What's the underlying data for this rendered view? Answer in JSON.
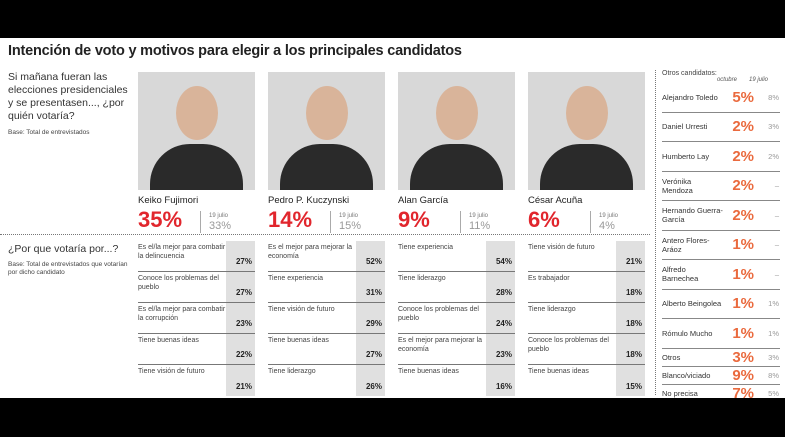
{
  "title": "Intención de voto y motivos para elegir a los principales candidatos",
  "question": "Si mañana fueran las elecciones presidenciales y se presentasen..., ¿por quién votaría?",
  "question_base": "Base: Total de entrevistados",
  "why_question": "¿Por que votaría por...?",
  "why_base": "Base: Total de entrevistados que votarían por dicho candidato",
  "previous_label": "19 julio",
  "chart_data": {
    "type": "table",
    "candidates": [
      {
        "name": "Keiko Fujimori",
        "current": "35%",
        "previous": "33%",
        "reasons": [
          [
            "Es el/la mejor para combatir la delincuencia",
            "27%"
          ],
          [
            "Conoce los problemas del pueblo",
            "27%"
          ],
          [
            "Es el/la mejor para combatir la corrupción",
            "23%"
          ],
          [
            "Tiene buenas ideas",
            "22%"
          ],
          [
            "Tiene visión de futuro",
            "21%"
          ]
        ]
      },
      {
        "name": "Pedro P. Kuczynski",
        "current": "14%",
        "previous": "15%",
        "reasons": [
          [
            "Es el mejor para mejorar la economía",
            "52%"
          ],
          [
            "Tiene experiencia",
            "31%"
          ],
          [
            "Tiene visión de futuro",
            "29%"
          ],
          [
            "Tiene buenas ideas",
            "27%"
          ],
          [
            "Tiene liderazgo",
            "26%"
          ]
        ]
      },
      {
        "name": "Alan García",
        "current": "9%",
        "previous": "11%",
        "reasons": [
          [
            "Tiene experiencia",
            "54%"
          ],
          [
            "Tiene liderazgo",
            "28%"
          ],
          [
            "Conoce los problemas del pueblo",
            "24%"
          ],
          [
            "Es el mejor para mejorar la economía",
            "23%"
          ],
          [
            "Tiene buenas ideas",
            "16%"
          ]
        ]
      },
      {
        "name": "César Acuña",
        "current": "6%",
        "previous": "4%",
        "reasons": [
          [
            "Tiene visión de futuro",
            "21%"
          ],
          [
            "Es trabajador",
            "18%"
          ],
          [
            "Tiene liderazgo",
            "18%"
          ],
          [
            "Conoce los problemas del pueblo",
            "18%"
          ],
          [
            "Tiene buenas ideas",
            "15%"
          ]
        ]
      }
    ],
    "others_title": "Otros candidatos:",
    "others_col_current": "octubre",
    "others_col_previous": "19 julio",
    "others": [
      {
        "name": "Alejandro Toledo",
        "current": "5%",
        "previous": "8%"
      },
      {
        "name": "Daniel Urresti",
        "current": "2%",
        "previous": "3%"
      },
      {
        "name": "Humberto Lay",
        "current": "2%",
        "previous": "2%"
      },
      {
        "name": "Verónika Mendoza",
        "current": "2%",
        "previous": "–"
      },
      {
        "name": "Hernando Guerra-García",
        "current": "2%",
        "previous": "–"
      },
      {
        "name": "Antero Flores-Aráoz",
        "current": "1%",
        "previous": "–"
      },
      {
        "name": "Alfredo Barnechea",
        "current": "1%",
        "previous": "–"
      },
      {
        "name": "Alberto Beingolea",
        "current": "1%",
        "previous": "1%"
      },
      {
        "name": "Rómulo Mucho",
        "current": "1%",
        "previous": "1%"
      },
      {
        "name": "Otros",
        "current": "3%",
        "previous": "3%"
      },
      {
        "name": "Blanco/viciado",
        "current": "9%",
        "previous": "8%"
      },
      {
        "name": "No precisa",
        "current": "7%",
        "previous": "5%"
      }
    ]
  }
}
